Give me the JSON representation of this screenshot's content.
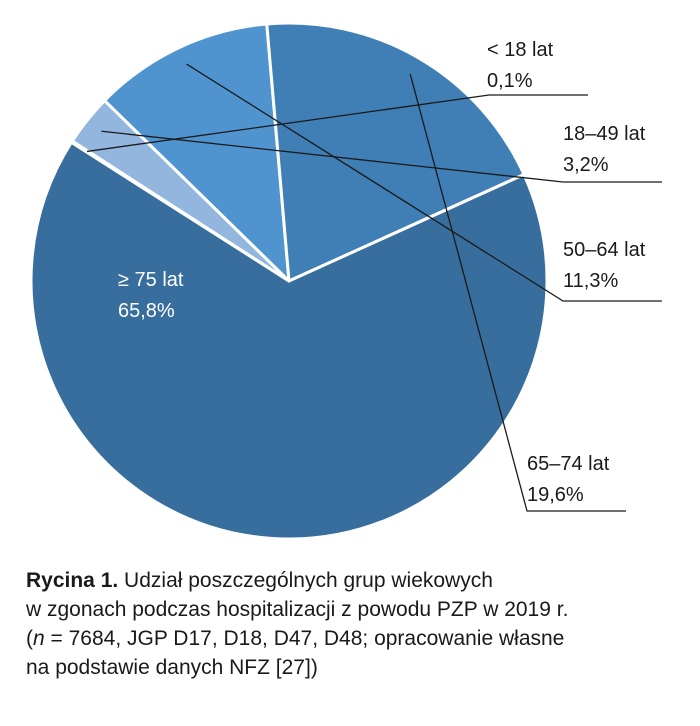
{
  "chart_data": {
    "type": "pie",
    "slices": [
      {
        "label": "< 18 lat",
        "value_label": "0,1%",
        "value": 0.1,
        "color": "#3a6e9c"
      },
      {
        "label": "18–49 lat",
        "value_label": "3,2%",
        "value": 3.2,
        "color": "#93b6df"
      },
      {
        "label": "50–64 lat",
        "value_label": "11,3%",
        "value": 11.3,
        "color": "#4f94cf"
      },
      {
        "label": "65–74 lat",
        "value_label": "19,6%",
        "value": 19.6,
        "color": "#3f7fb6"
      },
      {
        "label": "≥ 75 lat",
        "value_label": "65,8%",
        "value": 65.8,
        "color": "#386e9d"
      }
    ]
  },
  "caption": {
    "prefix": "Rycina 1.",
    "line1": " Udział poszczególnych grup wiekowych",
    "line2": "w zgonach podczas hospitalizacji z powodu PZP w 2019 r.",
    "line3_open": "(",
    "line3_n": "n",
    "line3_rest": " = 7684, JGP D17, D18, D47, D48; opracowanie własne",
    "line4": "na podstawie danych NFZ [27])"
  }
}
